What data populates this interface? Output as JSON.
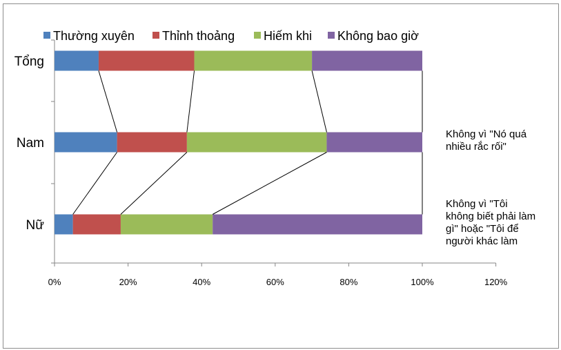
{
  "chart_data": {
    "type": "bar",
    "orientation": "horizontal",
    "stacked": true,
    "categories": [
      "Tổng",
      "Nam",
      "Nữ"
    ],
    "series": [
      {
        "name": "Thường xuyên",
        "color": "#4f81bd",
        "values": [
          12,
          17,
          5
        ]
      },
      {
        "name": "Thỉnh thoảng",
        "color": "#c0504d",
        "values": [
          26,
          19,
          13
        ]
      },
      {
        "name": "Hiếm khi",
        "color": "#9bbb59",
        "values": [
          32,
          38,
          25
        ]
      },
      {
        "name": "Không bao giờ",
        "color": "#8064a2",
        "values": [
          30,
          26,
          57
        ]
      }
    ],
    "x_ticks": [
      "0%",
      "20%",
      "40%",
      "60%",
      "80%",
      "100%",
      "120%"
    ],
    "xlim": [
      0,
      120
    ],
    "legend": "top",
    "series_lines": true,
    "grid": false,
    "annotations": [
      {
        "lines": [
          "Không vì \"Nó quá",
          "nhiều rắc rối\""
        ]
      },
      {
        "lines": [
          "Không vì \"Tôi",
          "không biết phải làm",
          "gì\" hoặc \"Tôi để",
          "người khác làm"
        ]
      }
    ]
  }
}
